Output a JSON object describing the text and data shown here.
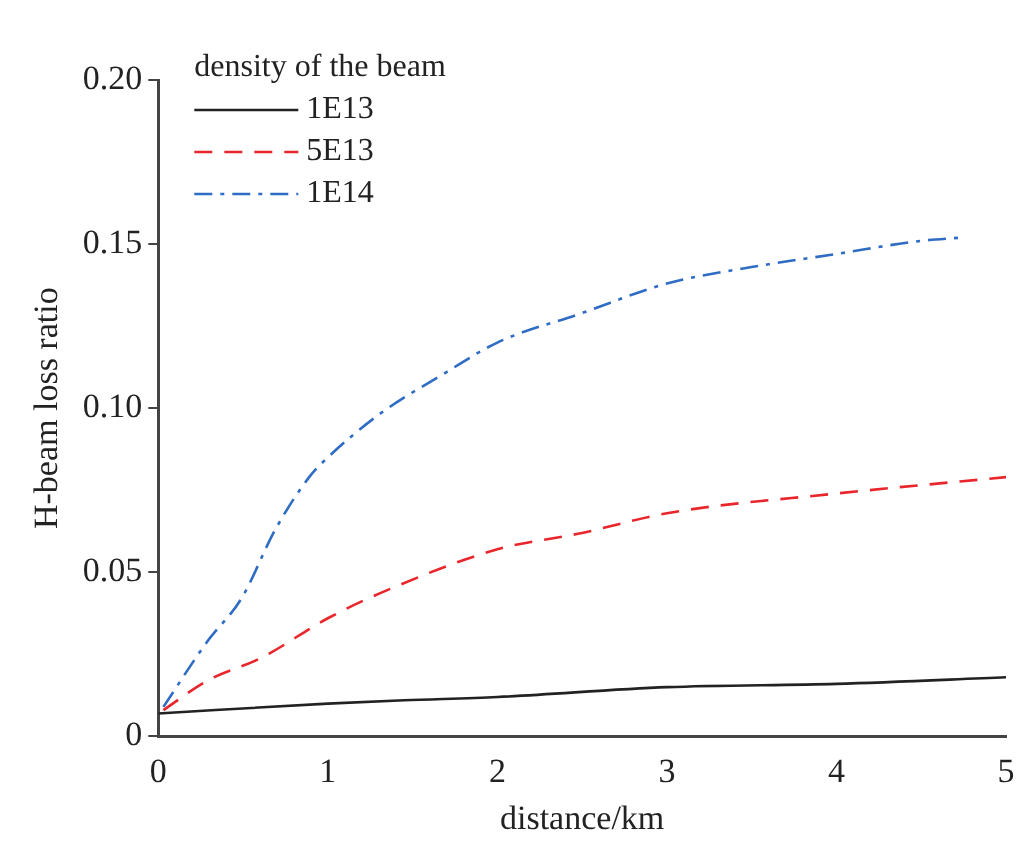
{
  "chart_data": {
    "type": "line",
    "xlabel": "distance/km",
    "ylabel": "H-beam loss ratio",
    "legend_title": "density of the beam",
    "legend": "top left",
    "grid": false,
    "marker": "none",
    "xlim": [
      0,
      5
    ],
    "xticks": [
      0,
      1,
      2,
      3,
      4,
      5
    ],
    "ylim": [
      0,
      0.2
    ],
    "yticks": [
      0,
      {
        "value": 0.05,
        "label": "0.05"
      },
      {
        "value": 0.1,
        "label": "0.10"
      },
      {
        "value": 0.15,
        "label": "0.15"
      },
      {
        "value": 0.2,
        "label": "0.20"
      }
    ],
    "series": [
      {
        "name": "1E13",
        "color": "#222222",
        "line_style": "solid",
        "x": [
          0,
          1,
          1.45,
          2,
          3,
          4,
          5
        ],
        "values": [
          0.007,
          0.01,
          0.011,
          0.012,
          0.015,
          0.016,
          0.018
        ]
      },
      {
        "name": "5E13",
        "color": "#e8262b",
        "line_style": "dashed",
        "x": [
          0.03,
          0.29,
          0.61,
          1,
          1.37,
          2,
          2.5,
          3,
          4,
          5
        ],
        "values": [
          0.008,
          0.017,
          0.024,
          0.036,
          0.045,
          0.057,
          0.062,
          0.068,
          0.074,
          0.079
        ]
      },
      {
        "name": "1E14",
        "color": "#2f6cc4",
        "line_style": "dashdot",
        "x": [
          0.03,
          0.29,
          0.49,
          0.69,
          0.89,
          1,
          1.3,
          1.7,
          2,
          2.5,
          3,
          3.5,
          4,
          4.5,
          4.74
        ],
        "values": [
          0.009,
          0.029,
          0.042,
          0.063,
          0.079,
          0.085,
          0.098,
          0.111,
          0.12,
          0.129,
          0.138,
          0.143,
          0.147,
          0.151,
          0.152
        ]
      }
    ]
  }
}
